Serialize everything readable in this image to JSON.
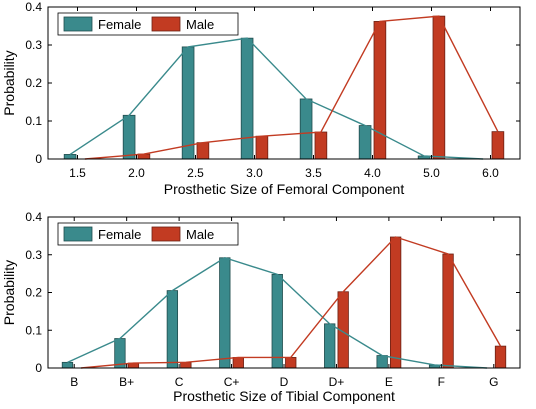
{
  "chart_data": [
    {
      "type": "bar",
      "xlabel": "Prosthetic Size of Femoral Component",
      "ylabel": "Probability",
      "categories": [
        "1.5",
        "2.0",
        "2.5",
        "3.0",
        "3.5",
        "4.0",
        "5.0",
        "6.0"
      ],
      "ylim": [
        0,
        0.4
      ],
      "yticks": [
        "0",
        "0.1",
        "0.2",
        "0.3",
        "0.4"
      ],
      "legend_position": "top-left",
      "grid": false,
      "series": [
        {
          "name": "Female",
          "color": "#3a8a8c",
          "values": [
            0.012,
            0.115,
            0.295,
            0.318,
            0.158,
            0.088,
            0.008,
            0.0
          ]
        },
        {
          "name": "Male",
          "color": "#c23b22",
          "values": [
            0.0,
            0.013,
            0.043,
            0.06,
            0.071,
            0.362,
            0.376,
            0.072
          ]
        }
      ],
      "fit_lines": [
        {
          "series": "Female",
          "values": [
            0.012,
            0.115,
            0.295,
            0.318,
            0.158,
            0.088,
            0.008,
            0.0
          ]
        },
        {
          "series": "Male",
          "values": [
            0.0,
            0.013,
            0.043,
            0.06,
            0.071,
            0.362,
            0.376,
            0.072
          ]
        }
      ]
    },
    {
      "type": "bar",
      "xlabel": "Prosthetic Size of Tibial Component",
      "ylabel": "Probability",
      "categories": [
        "B",
        "B+",
        "C",
        "C+",
        "D",
        "D+",
        "E",
        "F",
        "G"
      ],
      "ylim": [
        0,
        0.4
      ],
      "yticks": [
        "0",
        "0.1",
        "0.2",
        "0.3",
        "0.4"
      ],
      "legend_position": "top-left",
      "grid": false,
      "series": [
        {
          "name": "Female",
          "color": "#3a8a8c",
          "values": [
            0.015,
            0.078,
            0.205,
            0.292,
            0.248,
            0.117,
            0.033,
            0.008,
            0.0
          ]
        },
        {
          "name": "Male",
          "color": "#c23b22",
          "values": [
            0.0,
            0.013,
            0.015,
            0.028,
            0.028,
            0.202,
            0.347,
            0.302,
            0.058
          ]
        }
      ],
      "fit_lines": [
        {
          "series": "Female",
          "values": [
            0.015,
            0.078,
            0.205,
            0.292,
            0.248,
            0.117,
            0.033,
            0.008,
            0.0
          ]
        },
        {
          "series": "Male",
          "values": [
            0.0,
            0.013,
            0.015,
            0.028,
            0.028,
            0.202,
            0.347,
            0.302,
            0.058
          ]
        }
      ]
    }
  ]
}
